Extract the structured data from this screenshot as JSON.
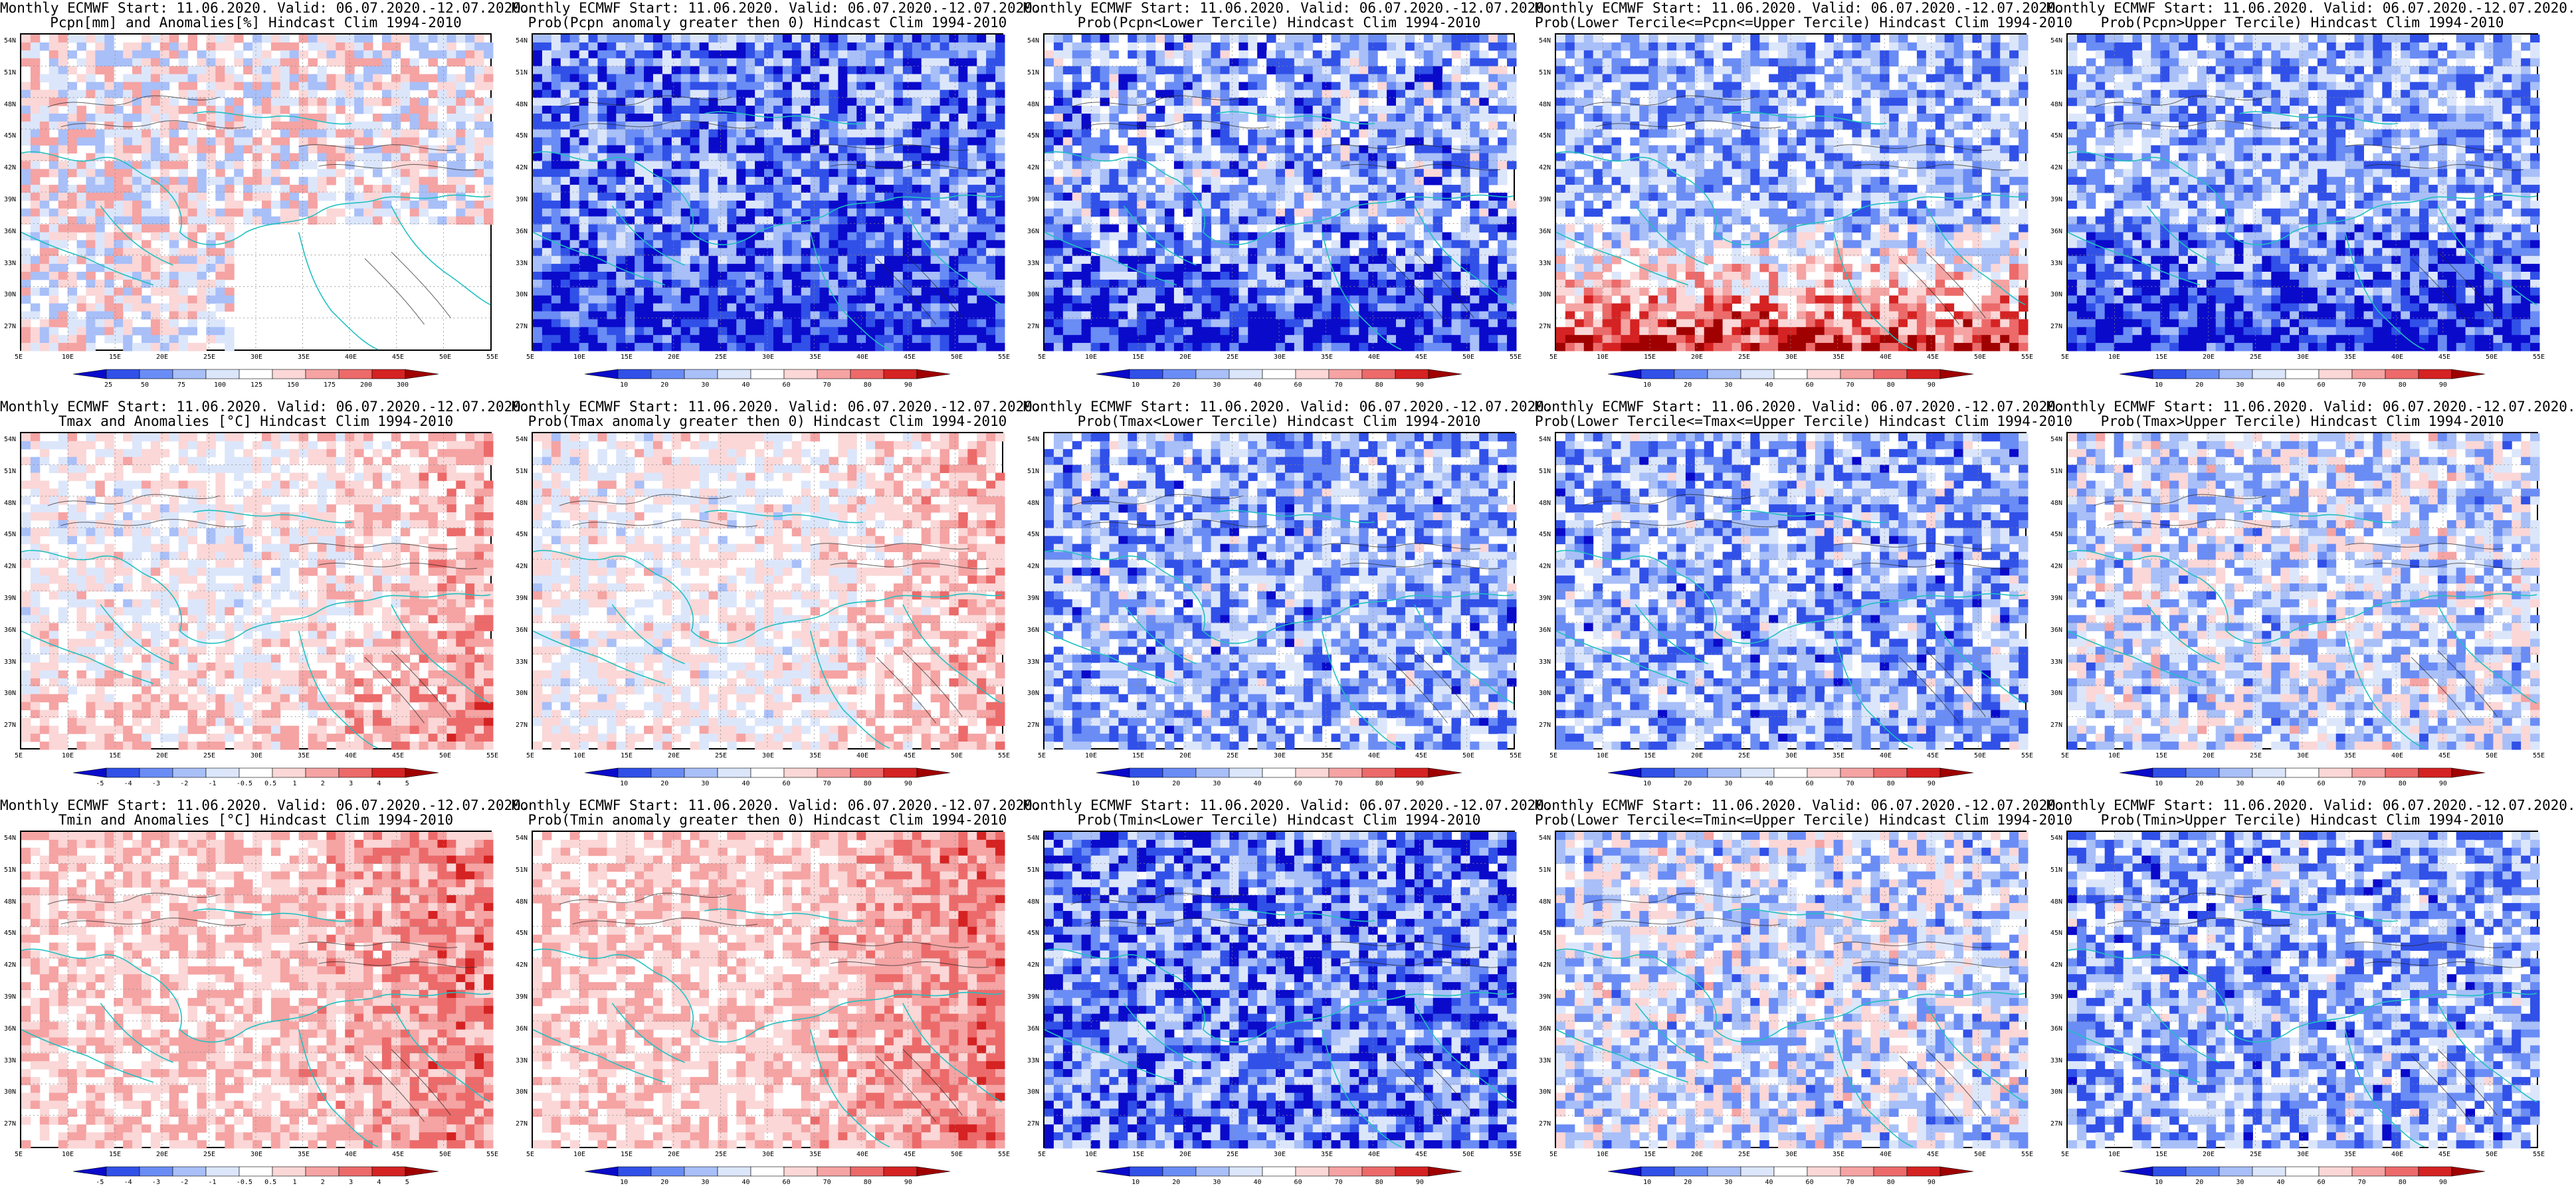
{
  "panels": [
    {
      "line1": "Monthly ECMWF Start: 11.06.2020. Valid: 06.07.2020.-12.07.2020.",
      "line2": "Pcpn[mm] and Anomalies[%] Hindcast Clim 1994-2010",
      "field": "pcpn_anom",
      "cb": "precip"
    },
    {
      "line1": "Monthly ECMWF Start: 11.06.2020. Valid: 06.07.2020.-12.07.2020.",
      "line2": "Prob(Pcpn anomaly greater then 0) Hindcast Clim 1994-2010",
      "field": "pcpn_prob_pos",
      "cb": "prob"
    },
    {
      "line1": "Monthly ECMWF Start: 11.06.2020. Valid: 06.07.2020.-12.07.2020.",
      "line2": "Prob(Pcpn<Lower Tercile) Hindcast Clim 1994-2010",
      "field": "pcpn_lower",
      "cb": "prob"
    },
    {
      "line1": "Monthly ECMWF Start: 11.06.2020. Valid: 06.07.2020.-12.07.2020.",
      "line2": "Prob(Lower Tercile<=Pcpn<=Upper Tercile) Hindcast Clim 1994-2010",
      "field": "pcpn_middle",
      "cb": "prob"
    },
    {
      "line1": "Monthly ECMWF Start: 11.06.2020. Valid: 06.07.2020.-12.07.2020.",
      "line2": "Prob(Pcpn>Upper Tercile) Hindcast Clim 1994-2010",
      "field": "pcpn_upper",
      "cb": "prob"
    },
    {
      "line1": "Monthly ECMWF Start: 11.06.2020. Valid: 06.07.2020.-12.07.2020.",
      "line2": "Tmax and Anomalies [°C] Hindcast Clim 1994-2010",
      "field": "tmax_anom",
      "cb": "temp"
    },
    {
      "line1": "Monthly ECMWF Start: 11.06.2020. Valid: 06.07.2020.-12.07.2020.",
      "line2": "Prob(Tmax anomaly greater then 0) Hindcast Clim 1994-2010",
      "field": "tmax_prob_pos",
      "cb": "prob"
    },
    {
      "line1": "Monthly ECMWF Start: 11.06.2020. Valid: 06.07.2020.-12.07.2020.",
      "line2": "Prob(Tmax<Lower Tercile) Hindcast Clim 1994-2010",
      "field": "tmax_lower",
      "cb": "prob"
    },
    {
      "line1": "Monthly ECMWF Start: 11.06.2020. Valid: 06.07.2020.-12.07.2020.",
      "line2": "Prob(Lower Tercile<=Tmax<=Upper Tercile) Hindcast Clim 1994-2010",
      "field": "tmax_middle",
      "cb": "prob"
    },
    {
      "line1": "Monthly ECMWF Start: 11.06.2020. Valid: 06.07.2020.-12.07.2020.",
      "line2": "Prob(Tmax>Upper Tercile) Hindcast Clim 1994-2010",
      "field": "tmax_upper",
      "cb": "prob"
    },
    {
      "line1": "Monthly ECMWF Start: 11.06.2020. Valid: 06.07.2020.-12.07.2020.",
      "line2": "Tmin and Anomalies [°C] Hindcast Clim 1994-2010",
      "field": "tmin_anom",
      "cb": "temp"
    },
    {
      "line1": "Monthly ECMWF Start: 11.06.2020. Valid: 06.07.2020.-12.07.2020.",
      "line2": "Prob(Tmin anomaly greater then 0) Hindcast Clim 1994-2010",
      "field": "tmin_prob_pos",
      "cb": "prob"
    },
    {
      "line1": "Monthly ECMWF Start: 11.06.2020. Valid: 06.07.2020.-12.07.2020.",
      "line2": "Prob(Tmin<Lower Tercile) Hindcast Clim 1994-2010",
      "field": "tmin_lower",
      "cb": "prob"
    },
    {
      "line1": "Monthly ECMWF Start: 11.06.2020. Valid: 06.07.2020.-12.07.2020.",
      "line2": "Prob(Lower Tercile<=Tmin<=Upper Tercile) Hindcast Clim 1994-2010",
      "field": "tmin_middle",
      "cb": "prob"
    },
    {
      "line1": "Monthly ECMWF Start: 11.06.2020. Valid: 06.07.2020.-12.07.2020.",
      "line2": "Prob(Tmin>Upper Tercile) Hindcast Clim 1994-2010",
      "field": "tmin_upper",
      "cb": "prob"
    }
  ],
  "lat_labels": [
    "54N",
    "51N",
    "48N",
    "45N",
    "42N",
    "39N",
    "36N",
    "33N",
    "30N",
    "27N"
  ],
  "lon_labels": [
    "5E",
    "10E",
    "15E",
    "20E",
    "25E",
    "30E",
    "35E",
    "40E",
    "45E",
    "50E",
    "55E"
  ],
  "colorbars": {
    "precip": {
      "labels": [
        "25",
        "50",
        "75",
        "100",
        "125",
        "150",
        "175",
        "200",
        "300"
      ],
      "colors": [
        "#0a0acb",
        "#3050e8",
        "#6a8cf5",
        "#a8bff8",
        "#dce6fb",
        "#ffffff",
        "#fbd7d7",
        "#f5a3a3",
        "#ec6a6a",
        "#d52222",
        "#a00000"
      ]
    },
    "prob": {
      "labels": [
        "10",
        "20",
        "30",
        "40",
        "60",
        "70",
        "80",
        "90"
      ],
      "colors": [
        "#0a0acb",
        "#3050e8",
        "#6a8cf5",
        "#a8bff8",
        "#dce6fb",
        "#ffffff",
        "#fbd7d7",
        "#f5a3a3",
        "#ec6a6a",
        "#d52222",
        "#a00000"
      ]
    },
    "temp": {
      "labels": [
        "-5",
        "-4",
        "-3",
        "-2",
        "-1",
        "-0.5",
        "0.5",
        "1",
        "2",
        "3",
        "4",
        "5"
      ],
      "colors": [
        "#0a0acb",
        "#3050e8",
        "#6a8cf5",
        "#a8bff8",
        "#dce6fb",
        "#ffffff",
        "#fbd7d7",
        "#f5a3a3",
        "#ec6a6a",
        "#d52222",
        "#a00000"
      ]
    }
  },
  "colors": {
    "coast": "#20c0c0",
    "contour": "#222222",
    "grid": "#8a8a8a"
  }
}
